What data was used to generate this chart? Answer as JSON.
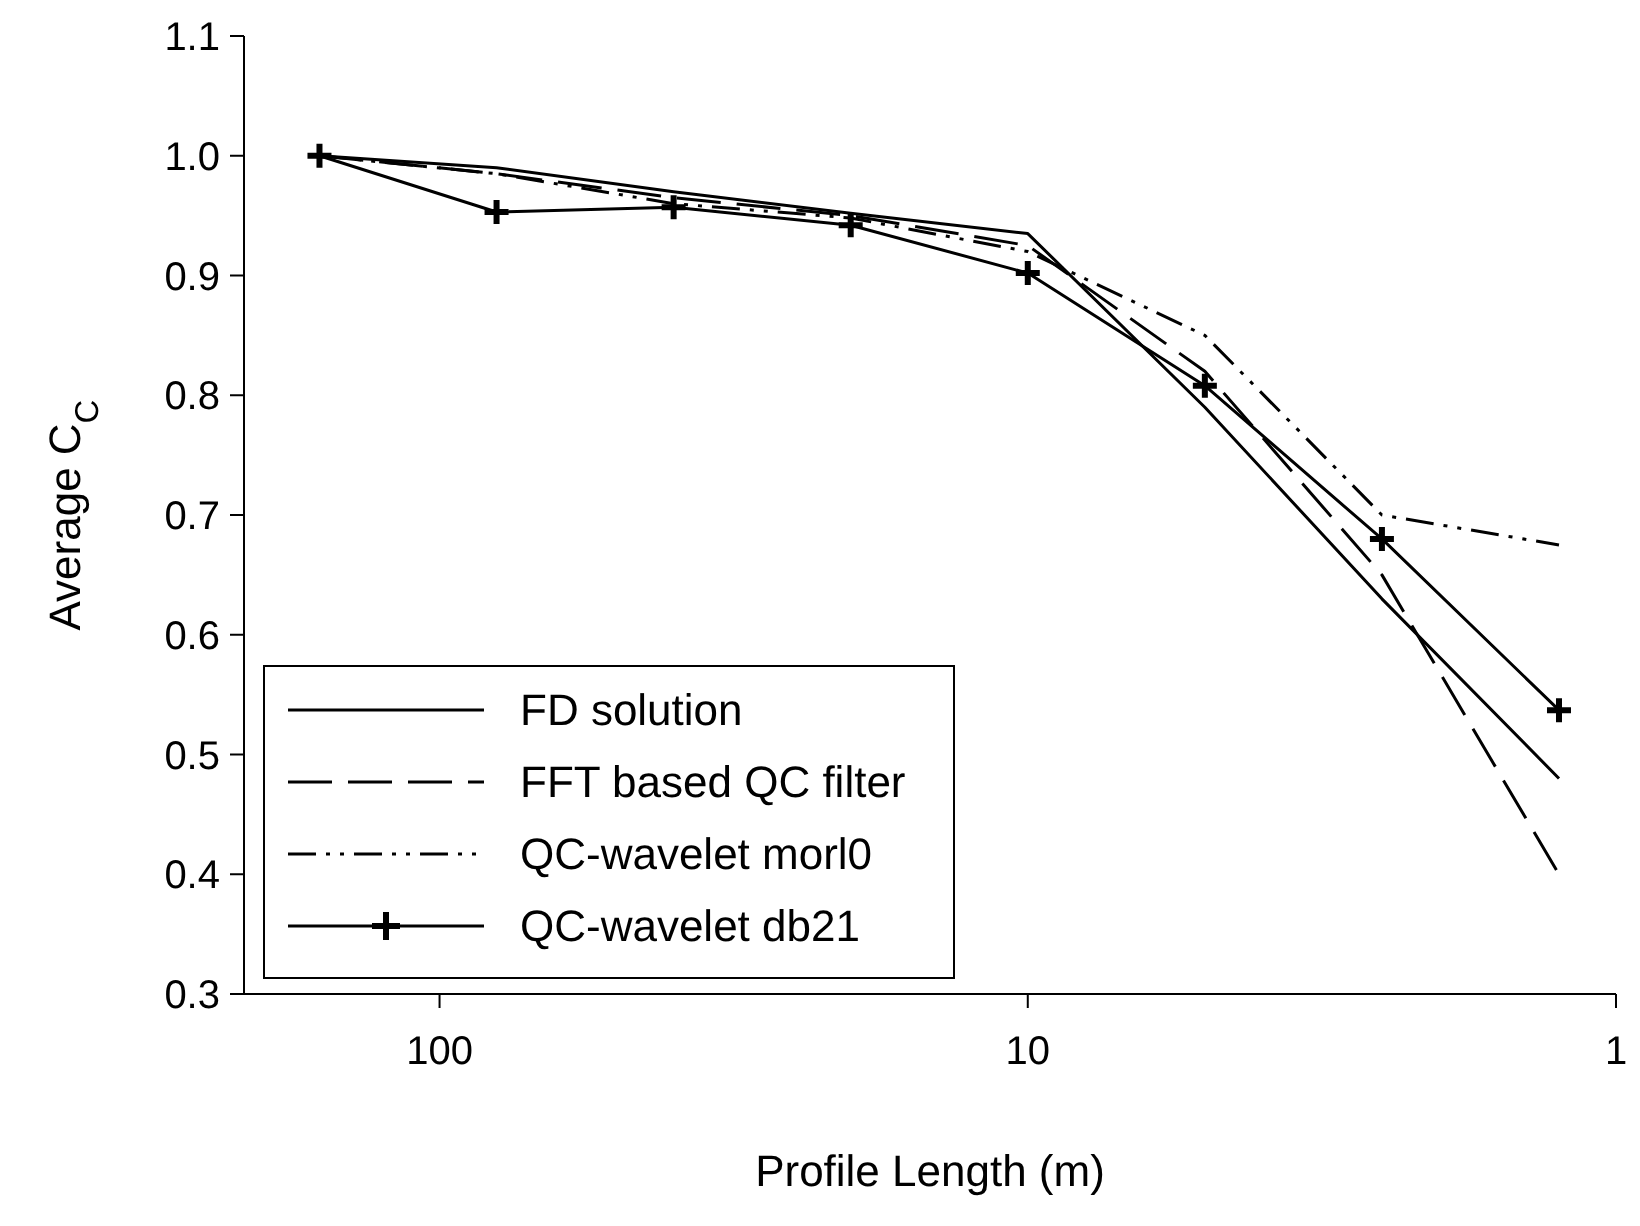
{
  "chart_data": {
    "type": "line",
    "xlabel": "Profile Length (m)",
    "ylabel": "Average C$_{C}$",
    "log": "x",
    "xlim": [
      215,
      1
    ],
    "xticks": [
      100,
      10,
      1
    ],
    "ylim": [
      0.3,
      1.1
    ],
    "yticks": [
      {
        "value": 0.3,
        "label": "0.3"
      },
      {
        "value": 0.4,
        "label": "0.4"
      },
      {
        "value": 0.5,
        "label": "0.5"
      },
      {
        "value": 0.6,
        "label": "0.6"
      },
      {
        "value": 0.7,
        "label": "0.7"
      },
      {
        "value": 0.8,
        "label": "0.8"
      },
      {
        "value": 0.9,
        "label": "0.9"
      },
      {
        "value": 1.0,
        "label": "1.0"
      },
      {
        "value": 1.1,
        "label": "1.1"
      }
    ],
    "legend": "bottom left",
    "grid": false,
    "x": [
      160,
      80,
      40,
      20,
      10,
      5,
      2.5,
      1.25
    ],
    "series": [
      {
        "name": "FD solution",
        "color": "#000000",
        "line_style": "solid",
        "marker": "none",
        "values": [
          1.0,
          0.99,
          0.97,
          0.952,
          0.935,
          0.79,
          0.63,
          0.48
        ]
      },
      {
        "name": "FFT based QC filter",
        "color": "#000000",
        "line_style": "dashed",
        "marker": "none",
        "values": [
          1.0,
          0.985,
          0.965,
          0.95,
          0.925,
          0.82,
          0.65,
          0.4
        ]
      },
      {
        "name": "QC-wavelet morl0",
        "color": "#000000",
        "line_style": "dotted",
        "marker": "none",
        "values": [
          1.0,
          0.985,
          0.96,
          0.948,
          0.92,
          0.85,
          0.7,
          0.675
        ]
      },
      {
        "name": "QC-wavelet db21",
        "color": "#000000",
        "line_style": "solid",
        "marker": "cross",
        "values": [
          1.0,
          0.953,
          0.957,
          0.942,
          0.902,
          0.808,
          0.68,
          0.537
        ]
      }
    ]
  }
}
